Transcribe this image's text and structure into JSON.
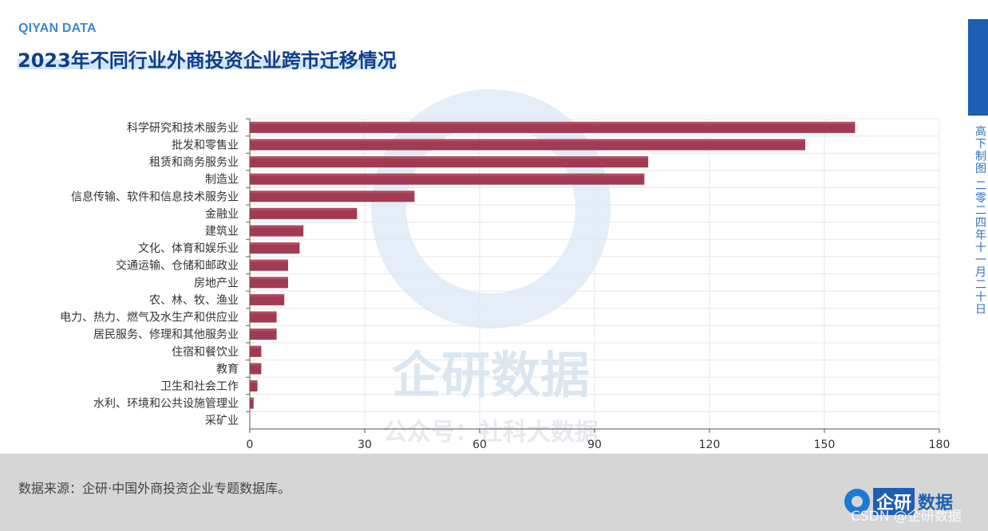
{
  "header": {
    "brand": "QIYAN DATA",
    "title": "2023年不同行业外商投资企业跨市迁移情况"
  },
  "side": {
    "text": "高下制图 二零二四年十一月二十日"
  },
  "watermark": {
    "main": "企研数据",
    "sub": "公众号：社科大数据"
  },
  "footer": {
    "source": "数据来源：企研·中国外商投资企业专题数据库。",
    "logo_box": "企研",
    "logo_text": "数据",
    "csdn": "CSDN @企研数据"
  },
  "colors": {
    "bar": "#a13a52",
    "title": "#0e3f8a",
    "accent": "#1c5fb0"
  },
  "chart_data": {
    "type": "bar",
    "orientation": "horizontal",
    "categories": [
      "科学研究和技术服务业",
      "批发和零售业",
      "租赁和商务服务业",
      "制造业",
      "信息传输、软件和信息技术服务业",
      "金融业",
      "建筑业",
      "文化、体育和娱乐业",
      "交通运输、仓储和邮政业",
      "房地产业",
      "农、林、牧、渔业",
      "电力、热力、燃气及水生产和供应业",
      "居民服务、修理和其他服务业",
      "住宿和餐饮业",
      "教育",
      "卫生和社会工作",
      "水利、环境和公共设施管理业",
      "采矿业"
    ],
    "values": [
      158,
      145,
      104,
      103,
      43,
      28,
      14,
      13,
      10,
      10,
      9,
      7,
      7,
      3,
      3,
      2,
      1,
      0
    ],
    "xlim": [
      0,
      180
    ],
    "xticks": [
      "0",
      "30",
      "60",
      "90",
      "120",
      "150",
      "180"
    ],
    "grid": true
  }
}
